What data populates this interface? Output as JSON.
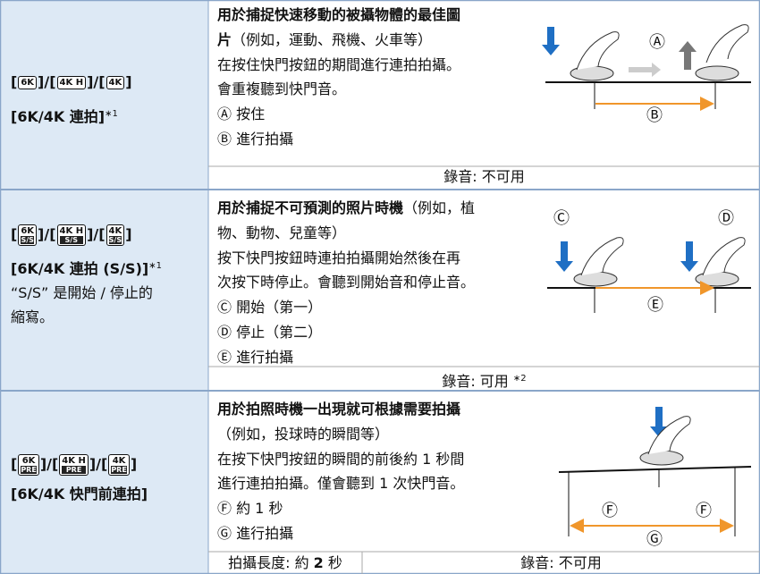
{
  "rows": [
    {
      "icons": {
        "open": "[",
        "sep": "]/[",
        "close": "]",
        "items": [
          "6K",
          "4K H",
          "4K"
        ],
        "mark": ""
      },
      "left_lines": [
        [
          {
            "b": "[6K/4K 連拍]"
          },
          {
            "s": "∗1"
          }
        ]
      ],
      "lines": [
        [
          {
            "b": "用於捕捉快速移動的被攝物體的最佳圖"
          }
        ],
        [
          {
            "b": "片"
          },
          {
            "t": "（例如，運動、飛機、火車等）"
          }
        ],
        [
          {
            "t": "在按住快門按鈕的期間進行連拍拍攝。"
          }
        ],
        [
          {
            "t": "會重複聽到快門音。"
          }
        ],
        [
          {
            "t": "Ⓐ 按住"
          }
        ],
        [
          {
            "t": "Ⓑ 進行拍攝"
          }
        ]
      ],
      "footer": [
        [
          {
            "t": "錄音: 不可用"
          }
        ]
      ],
      "figure_labels": [
        "Ⓐ",
        "Ⓑ"
      ]
    },
    {
      "icons": {
        "open": "[",
        "sep": "]/[",
        "close": "]",
        "items": [
          "6K",
          "4K H",
          "4K"
        ],
        "mark": "S/S"
      },
      "left_lines": [
        [
          {
            "b": "[6K/4K 連拍 (S/S)]"
          },
          {
            "s": "∗1"
          }
        ],
        [
          {
            "t": "“S/S” 是開始 / 停止的"
          }
        ],
        [
          {
            "t": "縮寫。"
          }
        ]
      ],
      "lines": [
        [
          {
            "b": "用於捕捉不可預測的照片時機"
          },
          {
            "t": "（例如，植"
          }
        ],
        [
          {
            "t": "物、動物、兒童等）"
          }
        ],
        [
          {
            "t": "按下快門按鈕時連拍拍攝開始然後在再"
          }
        ],
        [
          {
            "t": "次按下時停止。會聽到開始音和停止音。"
          }
        ],
        [
          {
            "t": "Ⓒ 開始（第一）"
          }
        ],
        [
          {
            "t": "Ⓓ 停止（第二）"
          }
        ],
        [
          {
            "t": "Ⓔ 進行拍攝"
          }
        ]
      ],
      "footer": [
        [
          {
            "t": "錄音: 可用 "
          },
          {
            "s": "∗2"
          }
        ]
      ],
      "figure_labels": [
        "Ⓒ",
        "Ⓓ",
        "Ⓔ"
      ]
    },
    {
      "icons": {
        "open": "[",
        "sep": "]/[",
        "close": "]",
        "items": [
          "6K",
          "4K H",
          "4K"
        ],
        "mark": "PRE"
      },
      "left_lines": [
        [
          {
            "b": "[6K/4K 快門前連拍]"
          }
        ]
      ],
      "lines": [
        [
          {
            "b": "用於拍照時機一出現就可根據需要拍攝"
          }
        ],
        [
          {
            "t": "（例如，投球時的瞬間等）"
          }
        ],
        [
          {
            "t": "在按下快門按鈕的瞬間的前後約 1 秒間"
          }
        ],
        [
          {
            "t": "進行連拍拍攝。僅會聽到 1 次快門音。"
          }
        ],
        [
          {
            "t": "Ⓕ 約 1 秒"
          }
        ],
        [
          {
            "t": "Ⓖ 進行拍攝"
          }
        ]
      ],
      "footer": [
        [
          {
            "t": "拍攝長度: 約 "
          },
          {
            "b": "2"
          },
          {
            "t": " 秒"
          }
        ],
        [
          {
            "t": "錄音: 不可用"
          }
        ]
      ],
      "figure_labels": [
        "Ⓕ",
        "Ⓕ",
        "Ⓖ"
      ]
    }
  ]
}
